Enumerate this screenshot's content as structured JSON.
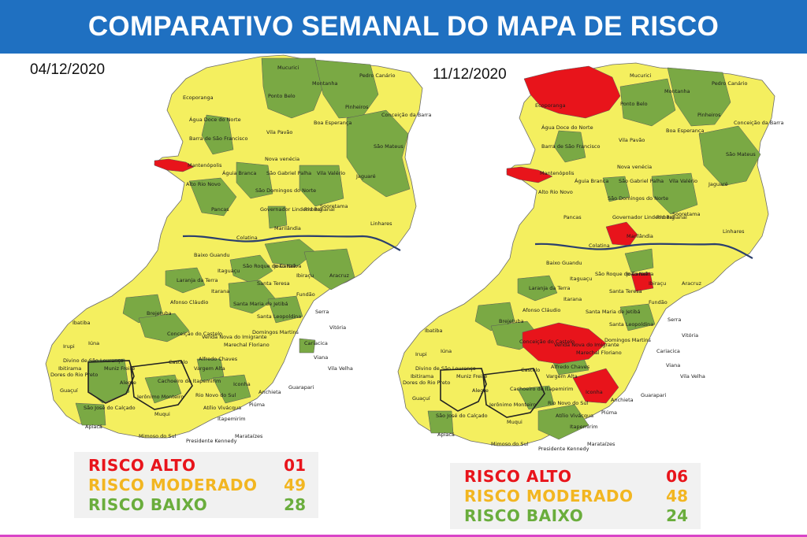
{
  "header": {
    "title": "COMPARATIVO SEMANAL DO MAPA DE RISCO"
  },
  "colors": {
    "header_bg": "#1f70c1",
    "risco_alto": "#e8141b",
    "risco_moderado": "#f4ef5f",
    "risco_baixo": "#7aa944",
    "alto_text": "#e8141b",
    "moderado_text": "#f2b621",
    "baixo_text": "#6aad3c"
  },
  "maps": [
    {
      "date": "04/12/2020",
      "legend": [
        {
          "label": "RISCO ALTO",
          "value": "01",
          "level": "alto"
        },
        {
          "label": "RISCO MODERADO",
          "value": "49",
          "level": "moderado"
        },
        {
          "label": "RISCO BAIXO",
          "value": "28",
          "level": "baixo"
        }
      ],
      "labels": [
        {
          "text": "Mucurici"
        },
        {
          "text": "Montanha"
        },
        {
          "text": "Pedro Canário"
        },
        {
          "text": "Ecoporanga"
        },
        {
          "text": "Ponto Belo"
        },
        {
          "text": "Pinheiros"
        },
        {
          "text": "Conceição da Barra"
        },
        {
          "text": "Água Doce do Norte"
        },
        {
          "text": "Boa Esperança"
        },
        {
          "text": "Barra de São Francisco"
        },
        {
          "text": "Vila Pavão"
        },
        {
          "text": "São Mateus"
        },
        {
          "text": "Nova venécia"
        },
        {
          "text": "Mantenópolis"
        },
        {
          "text": "Águia Branca"
        },
        {
          "text": "São Gabriel Palha"
        },
        {
          "text": "Vila Valério"
        },
        {
          "text": "Jaguaré"
        },
        {
          "text": "Alto Rio Novo"
        },
        {
          "text": "São Domingos do Norte"
        },
        {
          "text": "Sooretama"
        },
        {
          "text": "Pancas"
        },
        {
          "text": "Governador Lindemberg"
        },
        {
          "text": "Rio Bananal"
        },
        {
          "text": "Marilândia"
        },
        {
          "text": "Linhares"
        },
        {
          "text": "Colatina"
        },
        {
          "text": "Baixo Guandu"
        },
        {
          "text": "São Roque do Canaã"
        },
        {
          "text": "João Neiva"
        },
        {
          "text": "Itaguaçu"
        },
        {
          "text": "Ibiraçu"
        },
        {
          "text": "Aracruz"
        },
        {
          "text": "Laranja da Terra"
        },
        {
          "text": "Santa Teresa"
        },
        {
          "text": "Itarana"
        },
        {
          "text": "Fundão"
        },
        {
          "text": "Afonso Cláudio"
        },
        {
          "text": "Santa Maria de Jetibá"
        },
        {
          "text": "Brejetuba"
        },
        {
          "text": "Santa Leopoldina"
        },
        {
          "text": "Serra"
        },
        {
          "text": "Ibatiba"
        },
        {
          "text": "Domingos Martins"
        },
        {
          "text": "Vitória"
        },
        {
          "text": "Conceição do Castelo"
        },
        {
          "text": "Venda Nova do Imigrante"
        },
        {
          "text": "Cariacica"
        },
        {
          "text": "Iúna"
        },
        {
          "text": "Irupi"
        },
        {
          "text": "Ibitirama"
        },
        {
          "text": "Muniz Freire"
        },
        {
          "text": "Marechal Floriano"
        },
        {
          "text": "Viana"
        },
        {
          "text": "Vila Velha"
        },
        {
          "text": "Divino de São Lourenço"
        },
        {
          "text": "Dores do Rio Preto"
        },
        {
          "text": "Castelo"
        },
        {
          "text": "Alfredo Chaves"
        },
        {
          "text": "Guarapari"
        },
        {
          "text": "Guaçuí"
        },
        {
          "text": "Alegre"
        },
        {
          "text": "Vargem Alta"
        },
        {
          "text": "Cachoeiro de Itapemirim"
        },
        {
          "text": "Iconha"
        },
        {
          "text": "Anchieta"
        },
        {
          "text": "Jerônimo Monteiro"
        },
        {
          "text": "Rio Novo do Sul"
        },
        {
          "text": "Piúma"
        },
        {
          "text": "Muqui"
        },
        {
          "text": "Atílio Vivácqua"
        },
        {
          "text": "Itapemirim"
        },
        {
          "text": "São José do Calçado"
        },
        {
          "text": "Apiacá"
        },
        {
          "text": "Mimoso do Sul"
        },
        {
          "text": "Presidente Kennedy"
        },
        {
          "text": "Marataízes"
        }
      ]
    },
    {
      "date": "11/12/2020",
      "legend": [
        {
          "label": "RISCO ALTO",
          "value": "06",
          "level": "alto"
        },
        {
          "label": "RISCO MODERADO",
          "value": "48",
          "level": "moderado"
        },
        {
          "label": "RISCO BAIXO",
          "value": "24",
          "level": "baixo"
        }
      ],
      "labels": [
        {
          "text": "Mucurici"
        },
        {
          "text": "Montanha"
        },
        {
          "text": "Pedro Canário"
        },
        {
          "text": "Ecoporanga"
        },
        {
          "text": "Ponto Belo"
        },
        {
          "text": "Pinheiros"
        },
        {
          "text": "Conceição da Barra"
        },
        {
          "text": "Água Doce do Norte"
        },
        {
          "text": "Boa Esperança"
        },
        {
          "text": "Barra de São Francisco"
        },
        {
          "text": "Vila Pavão"
        },
        {
          "text": "São Mateus"
        },
        {
          "text": "Nova venécia"
        },
        {
          "text": "Mantenópolis"
        },
        {
          "text": "Águia Branca"
        },
        {
          "text": "São Gabriel Palha"
        },
        {
          "text": "Vila Valério"
        },
        {
          "text": "Jaguaré"
        },
        {
          "text": "Alto Rio Novo"
        },
        {
          "text": "São Domingos do Norte"
        },
        {
          "text": "Sooretama"
        },
        {
          "text": "Pancas"
        },
        {
          "text": "Governador Lindemberg"
        },
        {
          "text": "Rio Bananal"
        },
        {
          "text": "Marilândia"
        },
        {
          "text": "Linhares"
        },
        {
          "text": "Colatina"
        },
        {
          "text": "Baixo Guandu"
        },
        {
          "text": "São Roque do Canaã"
        },
        {
          "text": "João Neiva"
        },
        {
          "text": "Itaguaçu"
        },
        {
          "text": "Ibiraçu"
        },
        {
          "text": "Aracruz"
        },
        {
          "text": "Laranja da Terra"
        },
        {
          "text": "Santa Teresa"
        },
        {
          "text": "Itarana"
        },
        {
          "text": "Fundão"
        },
        {
          "text": "Afonso Cláudio"
        },
        {
          "text": "Santa Maria de Jetibá"
        },
        {
          "text": "Brejetuba"
        },
        {
          "text": "Santa Leopoldina"
        },
        {
          "text": "Serra"
        },
        {
          "text": "Ibatiba"
        },
        {
          "text": "Domingos Martins"
        },
        {
          "text": "Vitória"
        },
        {
          "text": "Conceição do Castelo"
        },
        {
          "text": "Venda Nova do Imigrante"
        },
        {
          "text": "Cariacica"
        },
        {
          "text": "Iúna"
        },
        {
          "text": "Irupi"
        },
        {
          "text": "Ibitirama"
        },
        {
          "text": "Muniz Freire"
        },
        {
          "text": "Marechal Floriano"
        },
        {
          "text": "Viana"
        },
        {
          "text": "Vila Velha"
        },
        {
          "text": "Divino de São Lourenço"
        },
        {
          "text": "Dores do Rio Preto"
        },
        {
          "text": "Castelo"
        },
        {
          "text": "Alfredo Chaves"
        },
        {
          "text": "Guarapari"
        },
        {
          "text": "Guaçuí"
        },
        {
          "text": "Alegre"
        },
        {
          "text": "Vargem Alta"
        },
        {
          "text": "Cachoeiro de Itapemirim"
        },
        {
          "text": "Iconha"
        },
        {
          "text": "Anchieta"
        },
        {
          "text": "Jerônimo Monteiro"
        },
        {
          "text": "Rio Novo do Sul"
        },
        {
          "text": "Piúma"
        },
        {
          "text": "Muqui"
        },
        {
          "text": "Atílio Vivácqua"
        },
        {
          "text": "Itapemirim"
        },
        {
          "text": "São José do Calçado"
        },
        {
          "text": "Apiacá"
        },
        {
          "text": "Mimoso do Sul"
        },
        {
          "text": "Presidente Kennedy"
        },
        {
          "text": "Marataízes"
        }
      ]
    }
  ]
}
